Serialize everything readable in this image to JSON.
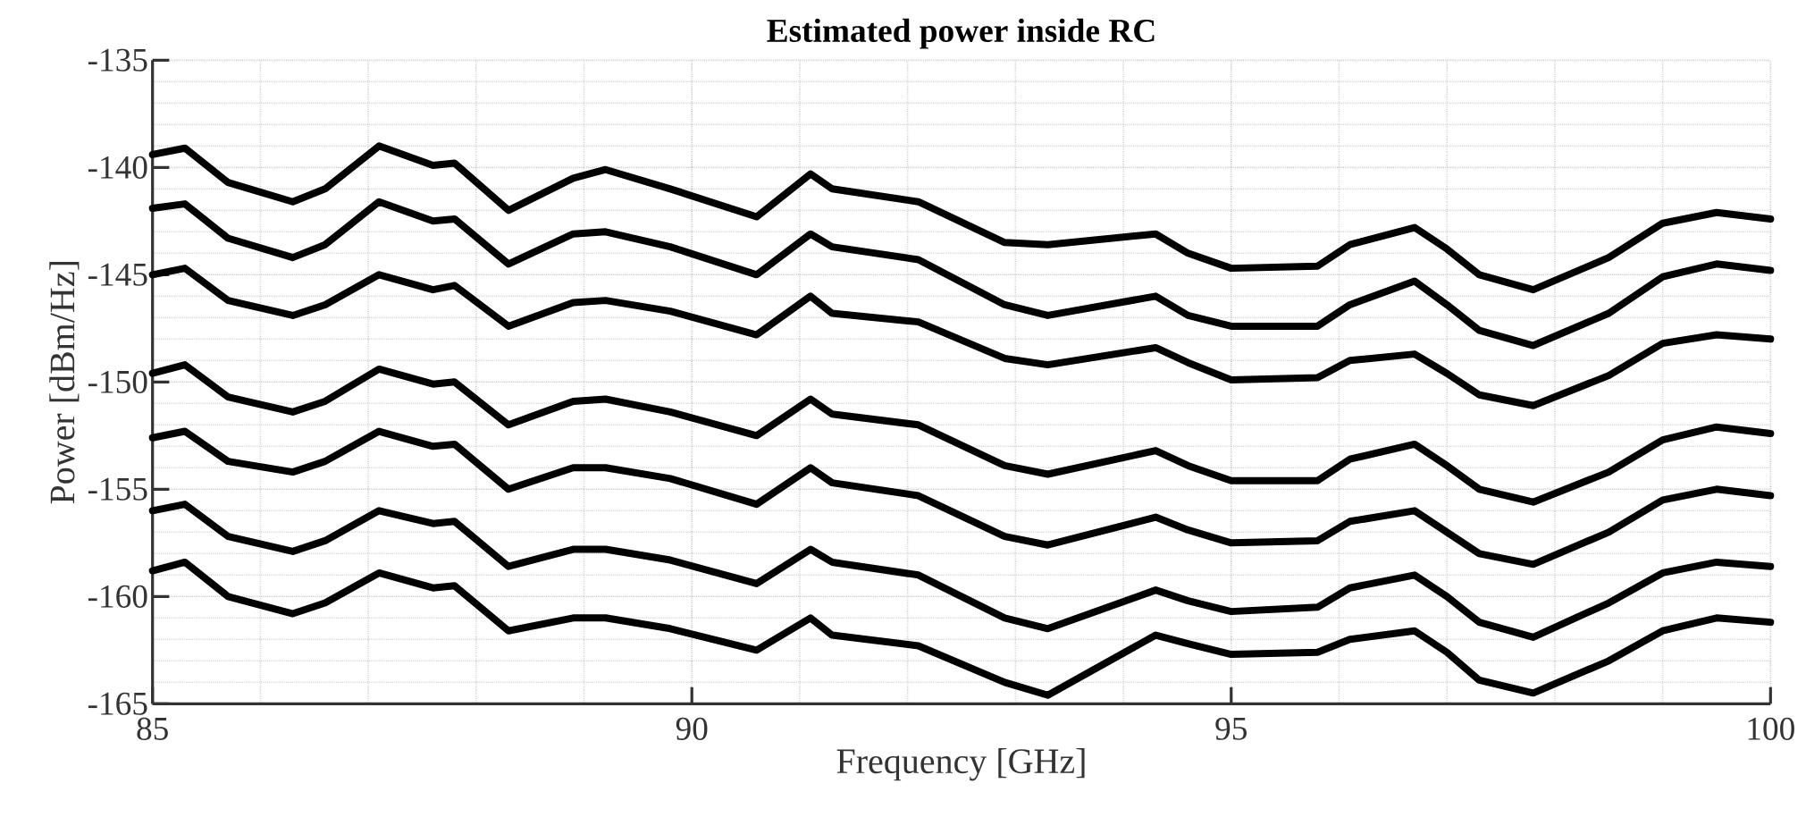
{
  "chart_data": {
    "type": "line",
    "title": "Estimated power inside RC",
    "xlabel": "Frequency [GHz]",
    "ylabel": "Power [dBm/Hz]",
    "x": [
      85.0,
      85.3,
      85.7,
      86.3,
      86.6,
      87.1,
      87.6,
      87.8,
      88.3,
      88.9,
      89.2,
      89.8,
      90.6,
      91.1,
      91.3,
      92.1,
      92.9,
      93.3,
      94.3,
      94.6,
      95.0,
      95.8,
      96.1,
      96.7,
      97.0,
      97.3,
      97.8,
      98.5,
      99.0,
      99.5,
      100.0
    ],
    "series": [
      {
        "color": "#000000",
        "values": [
          -139.4,
          -139.1,
          -140.7,
          -141.6,
          -141.0,
          -139.0,
          -139.9,
          -139.8,
          -142.0,
          -140.5,
          -140.1,
          -141.0,
          -142.3,
          -140.3,
          -141.0,
          -141.6,
          -143.5,
          -143.6,
          -143.1,
          -144.0,
          -144.7,
          -144.6,
          -143.6,
          -142.8,
          -143.8,
          -145.0,
          -145.7,
          -144.2,
          -142.6,
          -142.1,
          -142.4
        ]
      },
      {
        "color": "#000000",
        "values": [
          -141.9,
          -141.7,
          -143.3,
          -144.2,
          -143.6,
          -141.6,
          -142.5,
          -142.4,
          -144.5,
          -143.1,
          -143.0,
          -143.7,
          -145.0,
          -143.1,
          -143.7,
          -144.3,
          -146.4,
          -146.9,
          -146.0,
          -146.9,
          -147.4,
          -147.4,
          -146.4,
          -145.3,
          -146.4,
          -147.6,
          -148.3,
          -146.8,
          -145.1,
          -144.5,
          -144.8
        ]
      },
      {
        "color": "#000000",
        "values": [
          -145.0,
          -144.7,
          -146.2,
          -146.9,
          -146.4,
          -145.0,
          -145.7,
          -145.5,
          -147.4,
          -146.3,
          -146.2,
          -146.7,
          -147.8,
          -146.0,
          -146.8,
          -147.2,
          -148.9,
          -149.2,
          -148.4,
          -149.1,
          -149.9,
          -149.8,
          -149.0,
          -148.7,
          -149.6,
          -150.6,
          -151.1,
          -149.7,
          -148.2,
          -147.8,
          -148.0
        ]
      },
      {
        "color": "#000000",
        "values": [
          -149.6,
          -149.2,
          -150.7,
          -151.4,
          -150.9,
          -149.4,
          -150.1,
          -150.0,
          -152.0,
          -150.9,
          -150.8,
          -151.4,
          -152.5,
          -150.8,
          -151.5,
          -152.0,
          -153.9,
          -154.3,
          -153.2,
          -153.9,
          -154.6,
          -154.6,
          -153.6,
          -152.9,
          -153.9,
          -155.0,
          -155.6,
          -154.2,
          -152.7,
          -152.1,
          -152.4
        ]
      },
      {
        "color": "#000000",
        "values": [
          -152.6,
          -152.3,
          -153.7,
          -154.2,
          -153.7,
          -152.3,
          -153.0,
          -152.9,
          -155.0,
          -154.0,
          -154.0,
          -154.5,
          -155.7,
          -154.0,
          -154.7,
          -155.3,
          -157.2,
          -157.6,
          -156.3,
          -156.9,
          -157.5,
          -157.4,
          -156.5,
          -156.0,
          -157.0,
          -158.0,
          -158.5,
          -157.0,
          -155.5,
          -155.0,
          -155.3
        ]
      },
      {
        "color": "#000000",
        "values": [
          -156.0,
          -155.7,
          -157.2,
          -157.9,
          -157.4,
          -156.0,
          -156.6,
          -156.5,
          -158.6,
          -157.8,
          -157.8,
          -158.3,
          -159.4,
          -157.8,
          -158.4,
          -159.0,
          -161.0,
          -161.5,
          -159.7,
          -160.2,
          -160.7,
          -160.5,
          -159.6,
          -159.0,
          -160.0,
          -161.2,
          -161.9,
          -160.3,
          -158.9,
          -158.4,
          -158.6
        ]
      },
      {
        "color": "#000000",
        "values": [
          -158.8,
          -158.4,
          -160.0,
          -160.8,
          -160.3,
          -158.9,
          -159.6,
          -159.5,
          -161.6,
          -161.0,
          -161.0,
          -161.5,
          -162.5,
          -161.0,
          -161.8,
          -162.3,
          -164.0,
          -164.6,
          -161.8,
          -162.2,
          -162.7,
          -162.6,
          -162.0,
          -161.6,
          -162.6,
          -163.9,
          -164.5,
          -163.0,
          -161.6,
          -161.0,
          -161.2
        ]
      }
    ],
    "xlim": [
      85,
      100
    ],
    "ylim": [
      -165,
      -135
    ],
    "xticks": [
      85,
      90,
      95,
      100
    ],
    "yticks": [
      -165,
      -160,
      -155,
      -150,
      -145,
      -140,
      -135
    ],
    "grid": true,
    "marker": "none",
    "line_style": "solid"
  }
}
